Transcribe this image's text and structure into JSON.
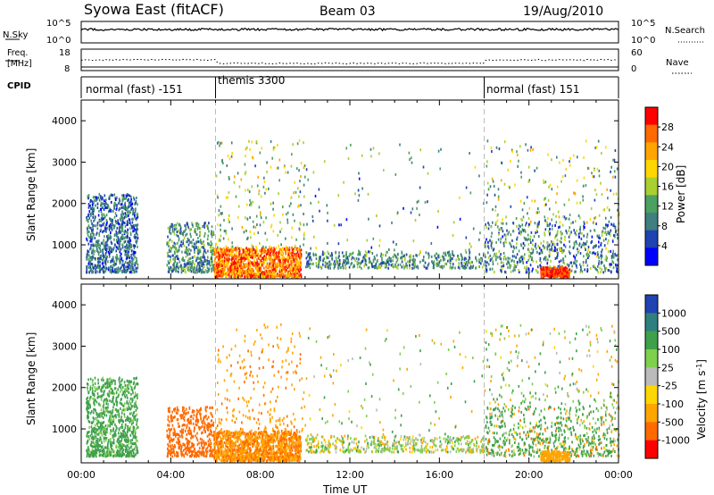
{
  "header": {
    "station": "Syowa East (fitACF)",
    "beam": "Beam 03",
    "date": "19/Aug/2010"
  },
  "top_panels": {
    "nsky_label": "N.Sky",
    "nsky_ticks": [
      "10^5",
      "10^0"
    ],
    "nsearch_label": "N.Search",
    "nsearch_ticks": [
      "10^5",
      "10^0"
    ],
    "freq_label_1": "Freq.",
    "freq_label_2": "[MHz]",
    "freq_ticks": [
      "18",
      "8"
    ],
    "nave_label": "Nave",
    "nave_ticks": [
      "60",
      "0"
    ],
    "cpid_label": "CPID",
    "cpid_segments": [
      {
        "label": "normal (fast) -151",
        "start": 0,
        "end": 6
      },
      {
        "label": "themis 3300",
        "start": 6,
        "end": 18
      },
      {
        "label": "normal (fast) 151",
        "start": 18,
        "end": 24
      }
    ]
  },
  "chart_data": [
    {
      "type": "heatmap",
      "panel": "power",
      "xlabel": "",
      "ylabel": "Slant Range [km]",
      "xlim": [
        0,
        24
      ],
      "ylim": [
        180,
        4500
      ],
      "yticks": [
        1000,
        2000,
        3000,
        4000
      ],
      "colorbar_label": "Power [dB]",
      "colorbar_ticks": [
        "28",
        "24",
        "20",
        "16",
        "12",
        "8",
        "4"
      ],
      "colors": [
        "#0000ff",
        "#1f43b0",
        "#3f7f7f",
        "#4ca060",
        "#a8d030",
        "#ffd700",
        "#ffa500",
        "#ff6a00",
        "#ff0000"
      ],
      "regions": [
        {
          "t0": 0.2,
          "t1": 2.5,
          "r0": 300,
          "r1": 2200,
          "n": 900,
          "v0": 4,
          "v1": 14
        },
        {
          "t0": 3.8,
          "t1": 5.9,
          "r0": 300,
          "r1": 1500,
          "n": 450,
          "v0": 6,
          "v1": 16
        },
        {
          "t0": 5.9,
          "t1": 9.8,
          "r0": 190,
          "r1": 900,
          "n": 1300,
          "v0": 18,
          "v1": 30
        },
        {
          "t0": 6.0,
          "t1": 10.0,
          "r0": 900,
          "r1": 3500,
          "n": 220,
          "v0": 8,
          "v1": 22
        },
        {
          "t0": 10.0,
          "t1": 18.0,
          "r0": 400,
          "r1": 800,
          "n": 500,
          "v0": 6,
          "v1": 16
        },
        {
          "t0": 10.0,
          "t1": 18.0,
          "r0": 800,
          "r1": 3400,
          "n": 110,
          "v0": 4,
          "v1": 18
        },
        {
          "t0": 18.0,
          "t1": 24.0,
          "r0": 300,
          "r1": 1500,
          "n": 650,
          "v0": 4,
          "v1": 18
        },
        {
          "t0": 20.5,
          "t1": 21.8,
          "r0": 190,
          "r1": 420,
          "n": 220,
          "v0": 24,
          "v1": 30
        },
        {
          "t0": 18.0,
          "t1": 24.0,
          "r0": 1500,
          "r1": 3500,
          "n": 200,
          "v0": 6,
          "v1": 22
        }
      ]
    },
    {
      "type": "heatmap",
      "panel": "velocity",
      "xlabel": "Time UT",
      "ylabel": "Slant Range [km]",
      "xlim": [
        0,
        24
      ],
      "ylim": [
        180,
        4500
      ],
      "yticks": [
        1000,
        2000,
        3000,
        4000
      ],
      "xticks": [
        "00:00",
        "04:00",
        "08:00",
        "12:00",
        "16:00",
        "20:00",
        "00:00"
      ],
      "colorbar_label": "Velocity [m s^-1]",
      "colorbar_ticks": [
        "1000",
        "500",
        "100",
        "25",
        "-25",
        "-100",
        "-500",
        "-1000"
      ],
      "colors": [
        "#ff0000",
        "#ff6a00",
        "#ffa500",
        "#ffd700",
        "#bbbbbb",
        "#7fd04c",
        "#3fa04c",
        "#2f7f7f",
        "#1f43b0"
      ],
      "regions": [
        {
          "t0": 0.2,
          "t1": 2.5,
          "r0": 300,
          "r1": 2200,
          "n": 900,
          "v0": 20,
          "v1": 500
        },
        {
          "t0": 3.8,
          "t1": 5.9,
          "r0": 300,
          "r1": 1500,
          "n": 450,
          "v0": -500,
          "v1": -100
        },
        {
          "t0": 5.9,
          "t1": 9.8,
          "r0": 190,
          "r1": 900,
          "n": 1300,
          "v0": -150,
          "v1": -25
        },
        {
          "t0": 6.0,
          "t1": 10.0,
          "r0": 900,
          "r1": 3500,
          "n": 220,
          "v0": -120,
          "v1": -30
        },
        {
          "t0": 10.0,
          "t1": 18.0,
          "r0": 400,
          "r1": 800,
          "n": 500,
          "v0": -60,
          "v1": 120
        },
        {
          "t0": 10.0,
          "t1": 18.0,
          "r0": 800,
          "r1": 3400,
          "n": 110,
          "v0": -100,
          "v1": 150
        },
        {
          "t0": 18.0,
          "t1": 24.0,
          "r0": 300,
          "r1": 1500,
          "n": 650,
          "v0": -150,
          "v1": 500
        },
        {
          "t0": 20.5,
          "t1": 21.8,
          "r0": 190,
          "r1": 420,
          "n": 220,
          "v0": -100,
          "v1": -30
        },
        {
          "t0": 18.0,
          "t1": 24.0,
          "r0": 1500,
          "r1": 3500,
          "n": 200,
          "v0": -100,
          "v1": 200
        }
      ]
    }
  ]
}
